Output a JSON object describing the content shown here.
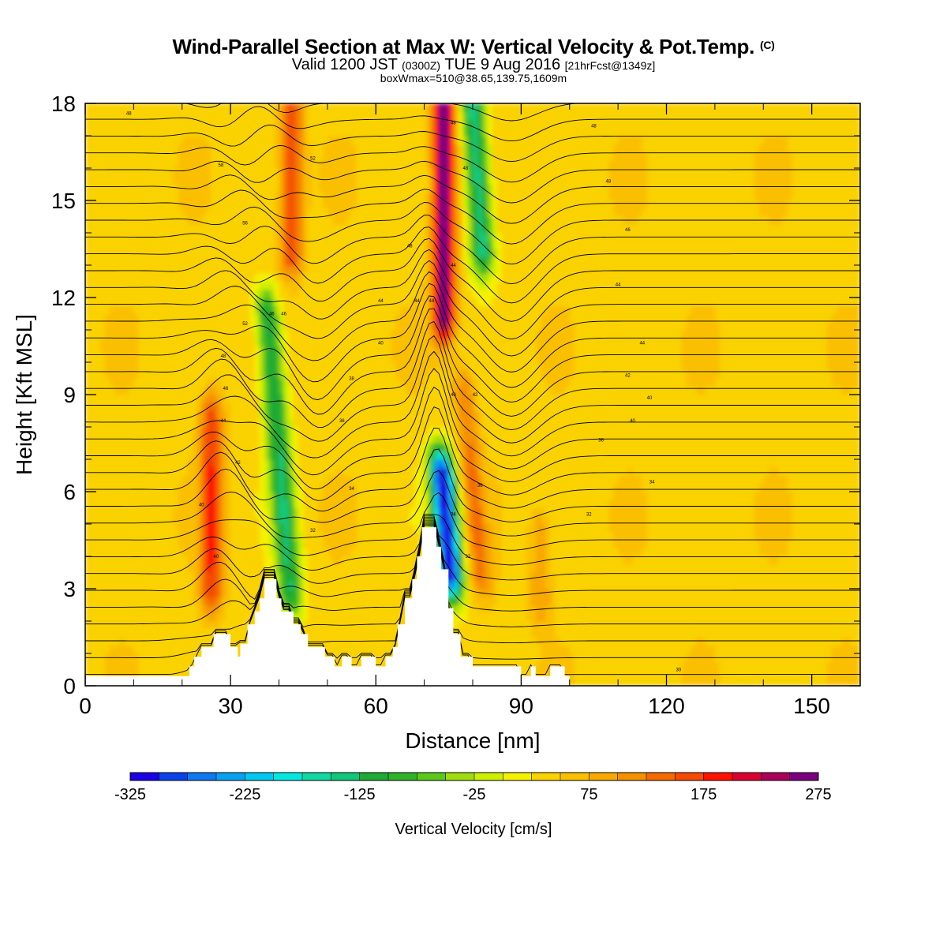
{
  "chart_data": {
    "type": "heatmap",
    "title": "Wind-Parallel Section at Max W: Vertical Velocity & Pot.Temp.",
    "title_mark": "(C)",
    "subtitle": {
      "valid_prefix": "Valid 1200 JST",
      "utc": "(0300Z)",
      "valid_suffix": "TUE 9 Aug 2016",
      "forecast": "[21hrFcst@1349z]"
    },
    "box_info": "boxWmax=510@38.65,139.75,1609m",
    "xlabel": "Distance [nm]",
    "ylabel": "Height [Kft MSL]",
    "xlim": [
      0,
      160
    ],
    "ylim": [
      0,
      18
    ],
    "x_ticks": [
      "0",
      "30",
      "60",
      "90",
      "120",
      "150"
    ],
    "y_ticks": [
      "0",
      "3",
      "6",
      "9",
      "12",
      "15",
      "18"
    ],
    "colorbar": {
      "label": "Vertical Velocity [cm/s]",
      "tick_labels": [
        "-325",
        "-225",
        "-125",
        "-25",
        "75",
        "175",
        "275"
      ],
      "bins_lower_bounds": [
        -325,
        -300,
        -275,
        -250,
        -225,
        -200,
        -175,
        -150,
        -125,
        -100,
        -75,
        -50,
        -25,
        0,
        25,
        50,
        75,
        100,
        125,
        150,
        175,
        200,
        225,
        250
      ],
      "colors": [
        "#1c00e6",
        "#0a42ea",
        "#0f78f0",
        "#0aa0f0",
        "#00c8f0",
        "#00e8e0",
        "#10d8a0",
        "#12c878",
        "#1faa36",
        "#2fb12a",
        "#5cc81a",
        "#a0dc10",
        "#ccf000",
        "#f5f000",
        "#fad200",
        "#fac000",
        "#f9a800",
        "#f59000",
        "#f56a00",
        "#f54a00",
        "#ff1200",
        "#dc0030",
        "#aa005a",
        "#7a0080"
      ]
    },
    "background_color": "#fac000",
    "updrafts": [
      {
        "x": 26,
        "z_bottom": 3.0,
        "z_top": 8.3,
        "w_max": 175
      },
      {
        "x": 42.5,
        "z_bottom": 13.5,
        "z_top": 18,
        "w_max": 175
      },
      {
        "x": 74,
        "z_bottom": 11.5,
        "z_top": 18,
        "w_max": 275
      },
      {
        "x": 80,
        "z_bottom": 3.5,
        "z_top": 9.0,
        "w_max": 125
      },
      {
        "x": 94,
        "z_bottom": 2.8,
        "z_top": 4.7,
        "w_max": 100
      }
    ],
    "downdrafts": [
      {
        "x": 40,
        "z_bottom": 3.0,
        "z_top": 11.5,
        "w_min": -125
      },
      {
        "x": 74.5,
        "z_bottom": 3.5,
        "z_top": 6.5,
        "w_min": -325
      },
      {
        "x": 81,
        "z_bottom": 13.5,
        "z_top": 18,
        "w_min": -150
      }
    ],
    "terrain_ticks_source": "filled terrain below the section",
    "terrain_profile": [
      {
        "x": 0,
        "z": 0.3
      },
      {
        "x": 21.5,
        "z": 0.3
      },
      {
        "x": 21.5,
        "z": 0.6
      },
      {
        "x": 22.5,
        "z": 0.6
      },
      {
        "x": 22.5,
        "z": 0.9
      },
      {
        "x": 24,
        "z": 0.9
      },
      {
        "x": 24,
        "z": 1.2
      },
      {
        "x": 26.5,
        "z": 1.2
      },
      {
        "x": 26.5,
        "z": 1.6
      },
      {
        "x": 30,
        "z": 1.6
      },
      {
        "x": 30,
        "z": 1.2
      },
      {
        "x": 31.5,
        "z": 1.2
      },
      {
        "x": 31.5,
        "z": 0.9
      },
      {
        "x": 32,
        "z": 0.9
      },
      {
        "x": 32,
        "z": 1.3
      },
      {
        "x": 33.5,
        "z": 1.3
      },
      {
        "x": 33.5,
        "z": 1.9
      },
      {
        "x": 35,
        "z": 1.9
      },
      {
        "x": 35,
        "z": 2.3
      },
      {
        "x": 36,
        "z": 2.3
      },
      {
        "x": 36,
        "z": 2.7
      },
      {
        "x": 37,
        "z": 2.7
      },
      {
        "x": 37,
        "z": 3.3
      },
      {
        "x": 39.5,
        "z": 3.3
      },
      {
        "x": 39.5,
        "z": 2.7
      },
      {
        "x": 40.5,
        "z": 2.7
      },
      {
        "x": 40.5,
        "z": 2.3
      },
      {
        "x": 43,
        "z": 2.3
      },
      {
        "x": 43,
        "z": 1.9
      },
      {
        "x": 44.5,
        "z": 1.9
      },
      {
        "x": 44.5,
        "z": 1.6
      },
      {
        "x": 46,
        "z": 1.6
      },
      {
        "x": 46,
        "z": 1.2
      },
      {
        "x": 49.5,
        "z": 1.2
      },
      {
        "x": 49.5,
        "z": 0.9
      },
      {
        "x": 51.5,
        "z": 0.9
      },
      {
        "x": 51.5,
        "z": 0.6
      },
      {
        "x": 53,
        "z": 0.6
      },
      {
        "x": 53,
        "z": 0.9
      },
      {
        "x": 55,
        "z": 0.9
      },
      {
        "x": 55,
        "z": 0.6
      },
      {
        "x": 57,
        "z": 0.6
      },
      {
        "x": 57,
        "z": 0.9
      },
      {
        "x": 60,
        "z": 0.9
      },
      {
        "x": 60,
        "z": 0.6
      },
      {
        "x": 62,
        "z": 0.6
      },
      {
        "x": 62,
        "z": 0.9
      },
      {
        "x": 63.5,
        "z": 0.9
      },
      {
        "x": 63.5,
        "z": 1.2
      },
      {
        "x": 64.5,
        "z": 1.2
      },
      {
        "x": 64.5,
        "z": 1.9
      },
      {
        "x": 66,
        "z": 1.9
      },
      {
        "x": 66,
        "z": 2.7
      },
      {
        "x": 67.5,
        "z": 2.7
      },
      {
        "x": 67.5,
        "z": 3.3
      },
      {
        "x": 68.5,
        "z": 3.3
      },
      {
        "x": 68.5,
        "z": 4.0
      },
      {
        "x": 69.5,
        "z": 4.0
      },
      {
        "x": 69.5,
        "z": 4.9
      },
      {
        "x": 72.5,
        "z": 4.9
      },
      {
        "x": 72.5,
        "z": 4.3
      },
      {
        "x": 73.5,
        "z": 4.3
      },
      {
        "x": 73.5,
        "z": 3.6
      },
      {
        "x": 75,
        "z": 3.6
      },
      {
        "x": 75,
        "z": 2.4
      },
      {
        "x": 76,
        "z": 2.4
      },
      {
        "x": 76,
        "z": 1.6
      },
      {
        "x": 77.5,
        "z": 1.6
      },
      {
        "x": 77.5,
        "z": 0.9
      },
      {
        "x": 80,
        "z": 0.9
      },
      {
        "x": 80,
        "z": 0.6
      },
      {
        "x": 90,
        "z": 0.6
      },
      {
        "x": 90,
        "z": 0.3
      },
      {
        "x": 92,
        "z": 0.3
      },
      {
        "x": 92,
        "z": 0.6
      },
      {
        "x": 93,
        "z": 0.6
      },
      {
        "x": 93,
        "z": 0.3
      },
      {
        "x": 96,
        "z": 0.3
      },
      {
        "x": 96,
        "z": 0.6
      },
      {
        "x": 99,
        "z": 0.6
      },
      {
        "x": 99,
        "z": 0.3
      },
      {
        "x": 100,
        "z": 0.3
      },
      {
        "x": 100,
        "z": 0
      },
      {
        "x": 160,
        "z": 0
      }
    ],
    "isentrope_count": 35,
    "isentrope_labels": [
      {
        "x": 9,
        "z": 17.7,
        "text": "48"
      },
      {
        "x": 28,
        "z": 16.1,
        "text": "58"
      },
      {
        "x": 33,
        "z": 14.3,
        "text": "56"
      },
      {
        "x": 47,
        "z": 16.3,
        "text": "52"
      },
      {
        "x": 67,
        "z": 13.6,
        "text": "48"
      },
      {
        "x": 76,
        "z": 17.4,
        "text": "48"
      },
      {
        "x": 78.5,
        "z": 16.0,
        "text": "48"
      },
      {
        "x": 76,
        "z": 13.0,
        "text": "44"
      },
      {
        "x": 68.5,
        "z": 11.9,
        "text": "44"
      },
      {
        "x": 71.5,
        "z": 11.9,
        "text": "44"
      },
      {
        "x": 105,
        "z": 17.3,
        "text": "48"
      },
      {
        "x": 108,
        "z": 15.6,
        "text": "48"
      },
      {
        "x": 112,
        "z": 14.1,
        "text": "46"
      },
      {
        "x": 110,
        "z": 12.4,
        "text": "44"
      },
      {
        "x": 115,
        "z": 10.6,
        "text": "44"
      },
      {
        "x": 112,
        "z": 9.6,
        "text": "42"
      },
      {
        "x": 116.5,
        "z": 8.9,
        "text": "40"
      },
      {
        "x": 113,
        "z": 8.2,
        "text": "40"
      },
      {
        "x": 106.5,
        "z": 7.6,
        "text": "36"
      },
      {
        "x": 117,
        "z": 6.3,
        "text": "34"
      },
      {
        "x": 104,
        "z": 5.3,
        "text": "32"
      },
      {
        "x": 122.5,
        "z": 0.5,
        "text": "30"
      },
      {
        "x": 33,
        "z": 11.2,
        "text": "52"
      },
      {
        "x": 38.5,
        "z": 11.5,
        "text": "46"
      },
      {
        "x": 41,
        "z": 11.5,
        "text": "46"
      },
      {
        "x": 28.5,
        "z": 10.2,
        "text": "48"
      },
      {
        "x": 29,
        "z": 9.2,
        "text": "46"
      },
      {
        "x": 28.5,
        "z": 8.2,
        "text": "44"
      },
      {
        "x": 31.5,
        "z": 6.9,
        "text": "42"
      },
      {
        "x": 24,
        "z": 5.6,
        "text": "40"
      },
      {
        "x": 27,
        "z": 4.0,
        "text": "40"
      },
      {
        "x": 61,
        "z": 11.9,
        "text": "44"
      },
      {
        "x": 61,
        "z": 10.6,
        "text": "40"
      },
      {
        "x": 55,
        "z": 9.5,
        "text": "38"
      },
      {
        "x": 53,
        "z": 8.2,
        "text": "36"
      },
      {
        "x": 55,
        "z": 6.1,
        "text": "34"
      },
      {
        "x": 47,
        "z": 4.8,
        "text": "32"
      },
      {
        "x": 76,
        "z": 9.0,
        "text": "40"
      },
      {
        "x": 80.5,
        "z": 9.0,
        "text": "42"
      },
      {
        "x": 81.5,
        "z": 6.2,
        "text": "36"
      },
      {
        "x": 76,
        "z": 5.3,
        "text": "34"
      },
      {
        "x": 79,
        "z": 4.0,
        "text": "32"
      }
    ]
  }
}
